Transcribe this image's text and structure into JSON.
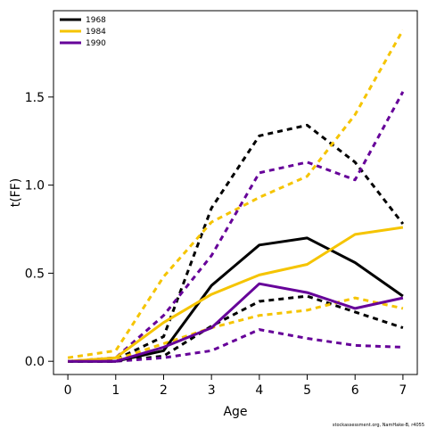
{
  "chart_data": {
    "type": "line",
    "xlabel": "Age",
    "ylabel": "t(FF)",
    "xlim": [
      -0.3,
      7.3
    ],
    "ylim": [
      -0.075,
      1.99
    ],
    "xticks": [
      0,
      1,
      2,
      3,
      4,
      5,
      6,
      7
    ],
    "yticks": [
      0.0,
      0.5,
      1.0,
      1.5
    ],
    "ytick_labels": [
      "0.0",
      "0.5",
      "1.0",
      "1.5"
    ],
    "legend_position": "top-left",
    "x": [
      0,
      1,
      2,
      3,
      4,
      5,
      6,
      7
    ],
    "series": [
      {
        "name": "1968",
        "color": "#000000",
        "values": [
          0.0,
          0.0,
          0.06,
          0.43,
          0.66,
          0.7,
          0.56,
          0.37
        ],
        "upper": [
          0.0,
          0.01,
          0.14,
          0.87,
          1.28,
          1.34,
          1.13,
          0.78
        ],
        "lower": [
          0.0,
          0.0,
          0.03,
          0.2,
          0.34,
          0.37,
          0.28,
          0.19
        ]
      },
      {
        "name": "1984",
        "color": "#f5c400",
        "values": [
          0.0,
          0.02,
          0.22,
          0.38,
          0.49,
          0.55,
          0.72,
          0.76
        ],
        "upper": [
          0.02,
          0.06,
          0.48,
          0.79,
          0.93,
          1.05,
          1.4,
          1.88
        ],
        "lower": [
          0.0,
          0.01,
          0.1,
          0.19,
          0.26,
          0.29,
          0.36,
          0.3
        ]
      },
      {
        "name": "1990",
        "color": "#660099",
        "values": [
          0.0,
          0.0,
          0.08,
          0.19,
          0.44,
          0.39,
          0.3,
          0.36
        ],
        "upper": [
          0.0,
          0.02,
          0.26,
          0.6,
          1.07,
          1.13,
          1.03,
          1.53
        ],
        "lower": [
          0.0,
          0.0,
          0.02,
          0.06,
          0.18,
          0.13,
          0.09,
          0.08
        ]
      }
    ],
    "footnote": "stockassessment.org, NamHake-B, r4055"
  }
}
